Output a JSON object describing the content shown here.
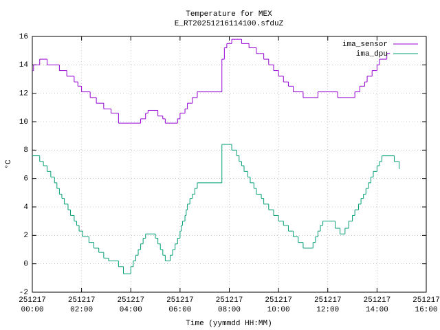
{
  "chart_data": {
    "type": "line",
    "step": true,
    "title": "Temperature for MEX",
    "subtitle": "E_RT20251216114100.sfduZ",
    "x_label": "Time (yymmdd HH:MM)",
    "y_label": "°C",
    "xlim": [
      0,
      16
    ],
    "ylim": [
      -2,
      16
    ],
    "grid": true,
    "legend": "top-right",
    "xticks": [
      {
        "value": 0,
        "label": "251217\n00:00"
      },
      {
        "value": 2,
        "label": "251217\n02:00"
      },
      {
        "value": 4,
        "label": "251217\n04:00"
      },
      {
        "value": 6,
        "label": "251217\n06:00"
      },
      {
        "value": 8,
        "label": "251217\n08:00"
      },
      {
        "value": 10,
        "label": "251217\n10:00"
      },
      {
        "value": 12,
        "label": "251217\n12:00"
      },
      {
        "value": 14,
        "label": "251217\n14:00"
      },
      {
        "value": 16,
        "label": "251217\n16:00"
      }
    ],
    "yticks": [
      -2,
      0,
      2,
      4,
      6,
      8,
      10,
      12,
      14,
      16
    ],
    "series": [
      {
        "name": "ima_sensor",
        "color": "#9400d3",
        "x": [
          0,
          0.05,
          0.3,
          0.6,
          1.1,
          1.4,
          1.7,
          1.85,
          2.0,
          2.35,
          2.6,
          2.9,
          3.2,
          3.5,
          4.4,
          4.6,
          4.7,
          5.1,
          5.3,
          5.4,
          5.9,
          6.0,
          6.2,
          6.3,
          6.5,
          6.7,
          7.7,
          7.8,
          7.9,
          8.1,
          8.5,
          8.8,
          9.1,
          9.4,
          9.6,
          9.8,
          10.0,
          10.2,
          10.4,
          10.6,
          11.0,
          11.6,
          12.4,
          13.1,
          13.3,
          13.5,
          13.6,
          13.8,
          14.0,
          14.1,
          14.4,
          14.5
        ],
        "values": [
          13.6,
          14.0,
          14.4,
          14.0,
          13.6,
          13.2,
          12.8,
          12.5,
          12.1,
          11.7,
          11.3,
          10.9,
          10.6,
          9.9,
          10.2,
          10.6,
          10.8,
          10.4,
          10.2,
          9.9,
          10.2,
          10.6,
          10.9,
          11.3,
          11.7,
          12.1,
          14.4,
          15.2,
          15.5,
          15.8,
          15.5,
          15.2,
          14.8,
          14.4,
          14.0,
          13.6,
          13.2,
          12.8,
          12.5,
          12.1,
          11.7,
          12.1,
          11.7,
          12.1,
          12.5,
          12.8,
          13.2,
          13.6,
          14.0,
          14.4,
          14.8,
          14.8
        ]
      },
      {
        "name": "ima_dpu",
        "color": "#009e73",
        "x": [
          0,
          0.3,
          0.45,
          0.6,
          0.75,
          0.9,
          1.0,
          1.1,
          1.2,
          1.3,
          1.45,
          1.55,
          1.7,
          1.8,
          1.9,
          2.05,
          2.3,
          2.5,
          2.7,
          2.9,
          3.1,
          3.5,
          3.7,
          4.0,
          4.1,
          4.2,
          4.3,
          4.4,
          4.5,
          4.6,
          5.0,
          5.1,
          5.2,
          5.3,
          5.4,
          5.6,
          5.7,
          5.8,
          5.9,
          6.0,
          6.05,
          6.1,
          6.2,
          6.25,
          6.3,
          6.4,
          6.5,
          6.6,
          6.7,
          7.7,
          8.1,
          8.3,
          8.4,
          8.5,
          8.6,
          8.75,
          8.85,
          9.0,
          9.1,
          9.3,
          9.4,
          9.6,
          9.8,
          10.0,
          10.2,
          10.4,
          10.6,
          10.8,
          11.0,
          11.4,
          11.5,
          11.6,
          11.7,
          11.8,
          12.3,
          12.5,
          12.7,
          12.85,
          13.0,
          13.1,
          13.25,
          13.35,
          13.45,
          13.55,
          13.65,
          13.75,
          13.85,
          14.0,
          14.1,
          14.2,
          14.7,
          14.9
        ],
        "values": [
          7.6,
          7.2,
          6.9,
          6.5,
          6.1,
          5.7,
          5.3,
          4.9,
          4.6,
          4.2,
          3.8,
          3.4,
          3.0,
          2.7,
          2.3,
          1.9,
          1.5,
          1.1,
          0.8,
          0.4,
          0.2,
          -0.2,
          -0.7,
          -0.2,
          0.2,
          0.6,
          1.0,
          1.4,
          1.8,
          2.1,
          1.8,
          1.4,
          1.0,
          0.6,
          0.2,
          0.6,
          1.0,
          1.4,
          1.8,
          2.3,
          2.7,
          3.0,
          3.4,
          3.8,
          4.2,
          4.6,
          4.9,
          5.3,
          5.7,
          8.4,
          8.0,
          7.6,
          7.2,
          6.9,
          6.5,
          6.1,
          5.7,
          5.3,
          4.9,
          4.6,
          4.2,
          3.8,
          3.4,
          3.0,
          2.7,
          2.3,
          1.9,
          1.5,
          1.1,
          1.5,
          1.9,
          2.3,
          2.7,
          3.0,
          2.5,
          2.1,
          2.5,
          3.0,
          3.4,
          3.8,
          4.2,
          4.6,
          4.9,
          5.3,
          5.7,
          6.1,
          6.5,
          6.9,
          7.2,
          7.6,
          7.2,
          6.7
        ]
      }
    ]
  }
}
